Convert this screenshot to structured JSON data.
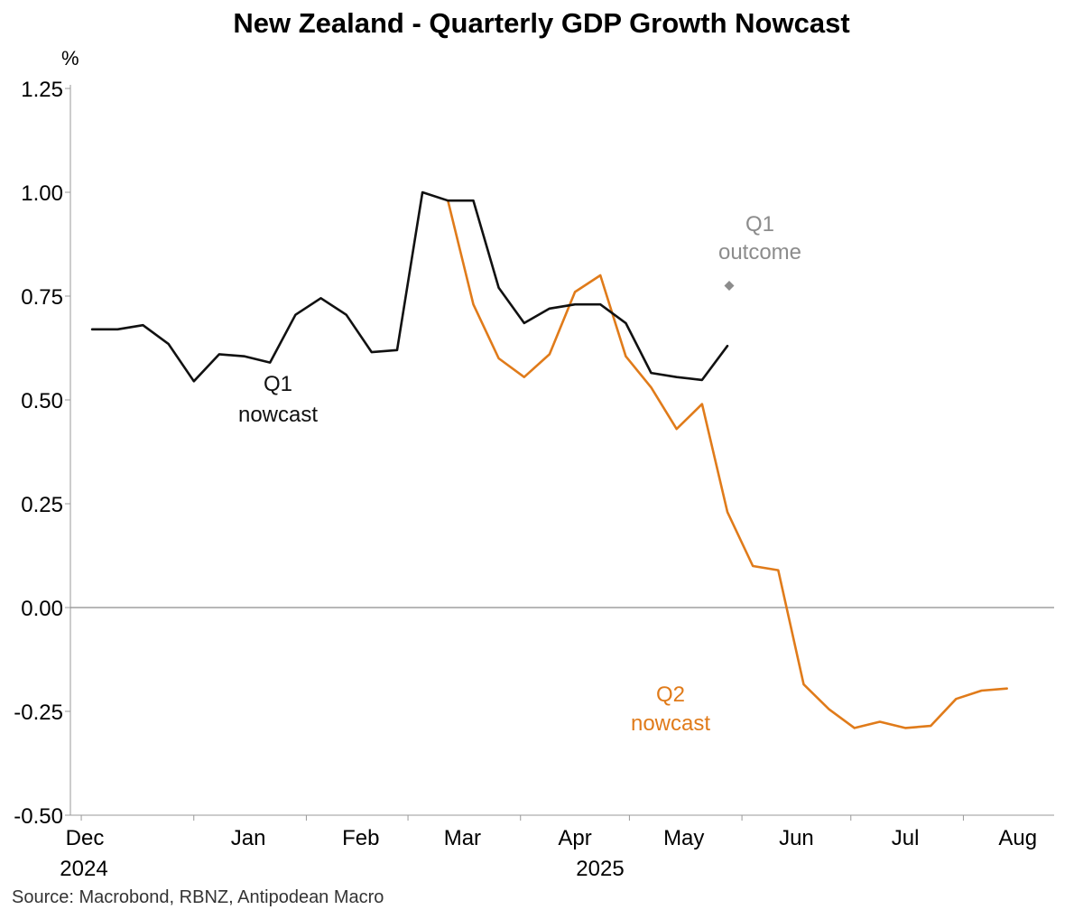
{
  "title": "New Zealand - Quarterly GDP Growth Nowcast",
  "source": "Source: Macrobond, RBNZ, Antipodean Macro",
  "colors": {
    "q1": "#111111",
    "q2": "#E07B1A",
    "outcome": "#8C8C8C",
    "axis": "#999999",
    "zero": "#8C8C8C"
  },
  "chart_data": {
    "type": "line",
    "title": "New Zealand - Quarterly GDP Growth Nowcast",
    "ylabel": "%",
    "ylim": [
      -0.5,
      1.25
    ],
    "yticks": [
      1.25,
      1.0,
      0.75,
      0.5,
      0.25,
      0.0,
      -0.25,
      -0.5
    ],
    "ytick_labels": [
      "1.25",
      "1.00",
      "0.75",
      "0.50",
      "0.25",
      "0.00",
      "-0.25",
      "-0.50"
    ],
    "xlim_days": [
      -3,
      268
    ],
    "x_note": "x values are days since 2024-12-01",
    "x_ticks": [
      {
        "label": "Dec",
        "sub": "2024",
        "day": 0
      },
      {
        "label": "Jan",
        "sub": "",
        "day": 31
      },
      {
        "label": "Feb",
        "sub": "",
        "day": 62
      },
      {
        "label": "Mar",
        "sub": "",
        "day": 90
      },
      {
        "label": "Apr",
        "sub": "2025",
        "day": 121
      },
      {
        "label": "May",
        "sub": "",
        "day": 151
      },
      {
        "label": "Jun",
        "sub": "",
        "day": 182
      },
      {
        "label": "Jul",
        "sub": "",
        "day": 212
      },
      {
        "label": "Aug",
        "sub": "",
        "day": 243
      }
    ],
    "series": [
      {
        "name": "Q1 nowcast",
        "label_lines": [
          "Q1",
          "nowcast"
        ],
        "x": [
          3,
          10,
          17,
          24,
          31,
          38,
          45,
          52,
          59,
          66,
          73,
          80,
          87,
          94,
          101,
          108,
          115,
          122,
          129,
          136,
          143,
          150,
          157,
          164,
          171,
          178
        ],
        "values": [
          0.67,
          0.67,
          0.68,
          0.635,
          0.545,
          0.61,
          0.605,
          0.59,
          0.705,
          0.745,
          0.705,
          0.615,
          0.62,
          1.0,
          0.98,
          0.98,
          0.77,
          0.685,
          0.72,
          0.73,
          0.73,
          0.685,
          0.565,
          0.555,
          0.548,
          0.63
        ]
      },
      {
        "name": "Q2 nowcast",
        "label_lines": [
          "Q2",
          "nowcast"
        ],
        "x": [
          101,
          108,
          115,
          122,
          129,
          136,
          143,
          150,
          157,
          164,
          171,
          178,
          185,
          192,
          199,
          206,
          213,
          220,
          227,
          234,
          241,
          248,
          255
        ],
        "values": [
          0.98,
          0.73,
          0.6,
          0.555,
          0.61,
          0.76,
          0.8,
          0.605,
          0.53,
          0.43,
          0.49,
          0.23,
          0.1,
          0.09,
          -0.185,
          -0.245,
          -0.29,
          -0.275,
          -0.29,
          -0.285,
          -0.22,
          -0.2,
          -0.195
        ]
      }
    ],
    "annotations": [
      {
        "name": "Q1 outcome",
        "label_lines": [
          "Q1",
          "outcome"
        ],
        "x": 178,
        "value": 0.775,
        "marker": "diamond"
      }
    ]
  }
}
